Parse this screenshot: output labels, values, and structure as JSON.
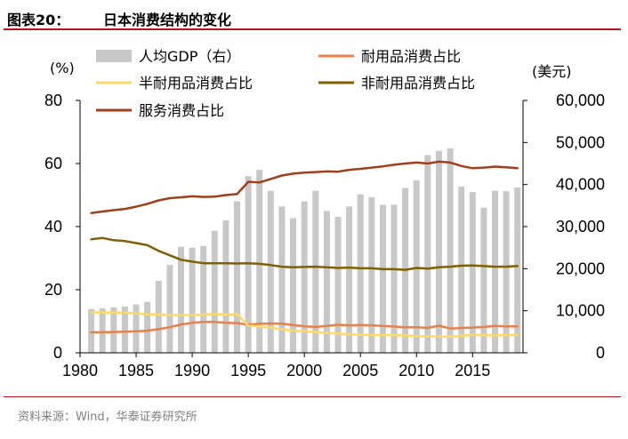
{
  "figure": {
    "label": "图表20：",
    "title": "日本消费结构的变化",
    "source": "资料来源：Wind，华泰证券研究所"
  },
  "chart_data": {
    "type": "bar+line",
    "left_axis_unit": "(%)",
    "right_axis_unit": "(美元)",
    "left_ylim": [
      0,
      80
    ],
    "left_ticks": [
      0,
      20,
      40,
      60,
      80
    ],
    "right_ylim": [
      0,
      60000
    ],
    "right_ticks": [
      "0",
      "10,000",
      "20,000",
      "30,000",
      "40,000",
      "50,000",
      "60,000"
    ],
    "x_ticks": [
      1980,
      1985,
      1990,
      1995,
      2000,
      2005,
      2010,
      2015
    ],
    "xlim": [
      1980,
      2019.5
    ],
    "grid": false,
    "legend_position": "top",
    "years": [
      1981,
      1982,
      1983,
      1984,
      1985,
      1986,
      1987,
      1988,
      1989,
      1990,
      1991,
      1992,
      1993,
      1994,
      1995,
      1996,
      1997,
      1998,
      1999,
      2000,
      2001,
      2002,
      2003,
      2004,
      2005,
      2006,
      2007,
      2008,
      2009,
      2010,
      2011,
      2012,
      2013,
      2014,
      2015,
      2016,
      2017,
      2018,
      2019
    ],
    "series": [
      {
        "name": "人均GDP（右）",
        "kind": "bar",
        "axis": "right",
        "color": "#c8c8c8",
        "values": [
          10400,
          10600,
          10800,
          11000,
          11500,
          12100,
          17100,
          20900,
          25200,
          25000,
          25400,
          29000,
          31500,
          36000,
          42000,
          43500,
          38500,
          34800,
          32000,
          36000,
          38500,
          33700,
          32300,
          34800,
          37700,
          37000,
          35200,
          35200,
          39200,
          41000,
          47000,
          48000,
          48600,
          39500,
          38200,
          34500,
          38500,
          38400,
          39300
        ]
      },
      {
        "name": "耐用品消费占比",
        "kind": "line",
        "axis": "left",
        "color": "#e8804a",
        "values": [
          6.5,
          6.5,
          6.6,
          6.7,
          6.8,
          7.0,
          7.5,
          8.1,
          9.0,
          9.5,
          9.8,
          9.8,
          9.5,
          9.4,
          8.9,
          9.2,
          9.3,
          9.2,
          8.8,
          8.4,
          8.2,
          8.5,
          8.9,
          8.7,
          8.8,
          8.7,
          8.5,
          8.3,
          8.1,
          8.1,
          7.9,
          8.6,
          7.7,
          7.9,
          8.0,
          8.2,
          8.5,
          8.4,
          8.4
        ]
      },
      {
        "name": "半耐用品消费占比",
        "kind": "line",
        "axis": "left",
        "color": "#ffd966",
        "values": [
          12.9,
          12.8,
          12.8,
          12.7,
          12.5,
          12.2,
          12.2,
          12.0,
          11.9,
          12.0,
          12.1,
          12.3,
          12.1,
          12.2,
          8.6,
          8.4,
          8.0,
          7.4,
          7.0,
          6.8,
          6.6,
          6.3,
          6.1,
          5.9,
          5.7,
          5.6,
          5.6,
          5.6,
          5.5,
          5.3,
          5.2,
          5.2,
          5.1,
          5.4,
          5.7,
          5.6,
          5.5,
          5.6,
          5.6
        ]
      },
      {
        "name": "非耐用品消费占比",
        "kind": "line",
        "axis": "left",
        "color": "#806000",
        "values": [
          36.0,
          36.4,
          35.7,
          35.4,
          34.8,
          34.1,
          32.3,
          30.9,
          29.5,
          28.9,
          28.4,
          28.4,
          28.4,
          28.3,
          28.4,
          28.2,
          27.8,
          27.3,
          27.1,
          27.2,
          27.3,
          27.1,
          26.9,
          27.0,
          26.8,
          26.8,
          26.5,
          26.5,
          26.3,
          26.9,
          26.7,
          27.1,
          27.3,
          27.6,
          27.7,
          27.5,
          27.3,
          27.3,
          27.5
        ]
      },
      {
        "name": "服务消费占比",
        "kind": "line",
        "axis": "left",
        "color": "#a0401a",
        "values": [
          44.3,
          44.8,
          45.2,
          45.6,
          46.3,
          47.2,
          48.3,
          49.0,
          49.3,
          49.6,
          49.4,
          49.5,
          50.0,
          50.3,
          54.2,
          54.0,
          55.1,
          56.2,
          56.8,
          57.1,
          57.3,
          57.5,
          57.4,
          58.0,
          58.3,
          58.7,
          59.1,
          59.6,
          60.0,
          60.3,
          60.0,
          60.6,
          60.3,
          59.2,
          58.5,
          58.7,
          59.0,
          58.8,
          58.5
        ]
      }
    ]
  }
}
